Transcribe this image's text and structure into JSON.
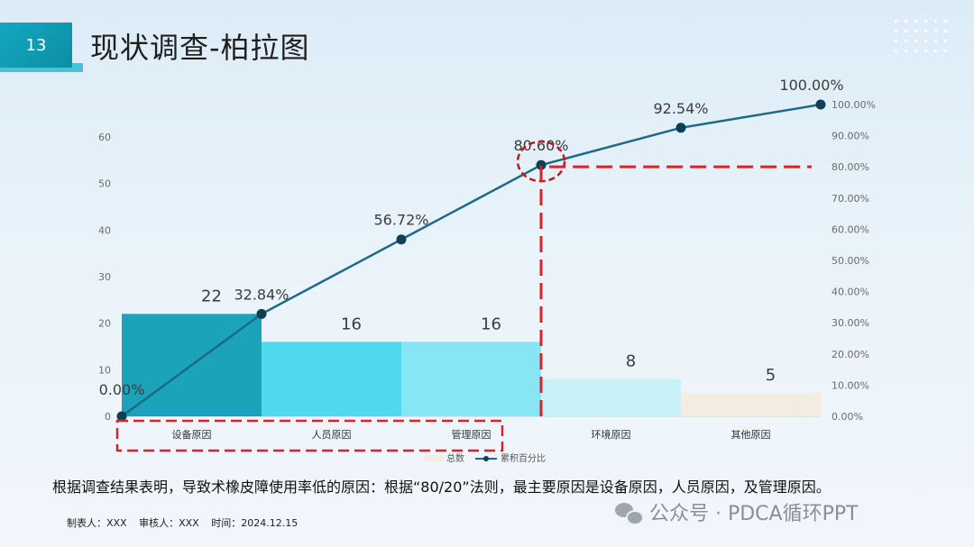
{
  "page": {
    "number": "13",
    "title": "现状调查-柏拉图"
  },
  "chart_data": {
    "type": "bar",
    "categories": [
      "设备原因",
      "人员原因",
      "管理原因",
      "环境原因",
      "其他原因"
    ],
    "series": [
      {
        "name": "总数",
        "type": "bar",
        "values": [
          22,
          16,
          16,
          8,
          5
        ],
        "colors": [
          "#1aa3b9",
          "#4ed9ec",
          "#86e6f3",
          "#c9f2f8",
          "#f2ece2"
        ]
      },
      {
        "name": "累积百分比",
        "type": "line",
        "x": [
          0,
          1,
          2,
          3,
          4,
          5
        ],
        "values": [
          0,
          32.84,
          56.72,
          80.6,
          92.54,
          100
        ],
        "labels": [
          "0.00%",
          "32.84%",
          "56.72%",
          "80.60%",
          "92.54%",
          "100.00%"
        ],
        "color": "#1e6a86"
      }
    ],
    "y_left": {
      "min": 0,
      "max": 60,
      "ticks": [
        "0",
        "10",
        "20",
        "30",
        "40",
        "50",
        "60"
      ]
    },
    "y_right": {
      "min": 0,
      "max": 100,
      "ticks": [
        "0.00%",
        "10.00%",
        "20.00%",
        "30.00%",
        "40.00%",
        "50.00%",
        "60.00%",
        "70.00%",
        "80.00%",
        "90.00%",
        "100.00%"
      ]
    },
    "legend": {
      "placement": "bottom",
      "items": [
        "总数",
        "累积百分比"
      ]
    },
    "annotation_color": "#d9232a"
  },
  "conclusion": "根据调查结果表明，导致术橡皮障使用率低的原因：根据“80/20”法则，最主要原因是设备原因，人员原因，及管理原因。",
  "brand": "公众号 · PDCA循环PPT",
  "footer": {
    "maker": "制表人：XXX",
    "reviewer": "审核人：XXX",
    "time": "时间：2024.12.15"
  }
}
